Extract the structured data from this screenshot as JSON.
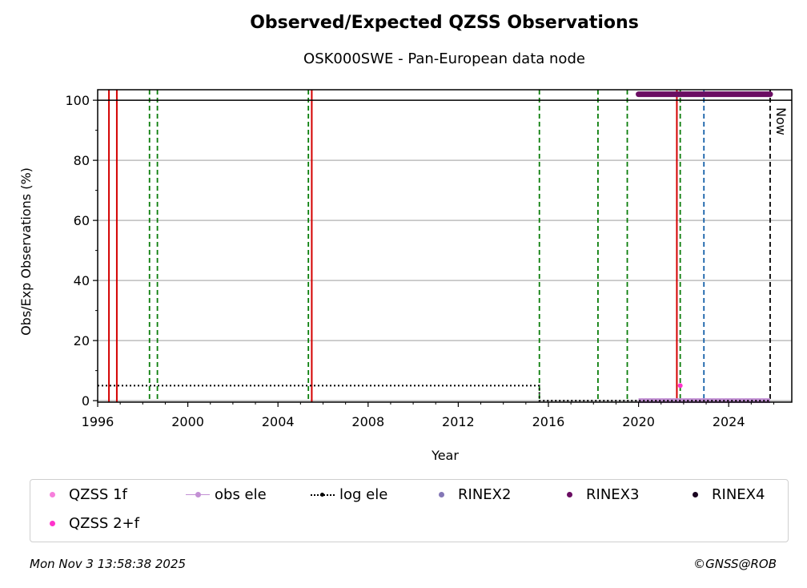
{
  "chart_data": {
    "type": "scatter",
    "title": "Observed/Expected QZSS Observations",
    "subtitle": "OSK000SWE - Pan-European data node",
    "xlabel": "Year",
    "ylabel": "Obs/Exp Observations (%)",
    "xlim": [
      1996.0,
      2026.8
    ],
    "ylim": [
      -0.5,
      103.5
    ],
    "xticks": [
      1996,
      2000,
      2004,
      2008,
      2012,
      2016,
      2020,
      2024
    ],
    "yticks": [
      0,
      20,
      40,
      60,
      80,
      100
    ],
    "grid": "horizontal",
    "now_label": "Now",
    "now_year": 2025.84,
    "red_lines": [
      1996.5,
      1996.85,
      2005.5,
      2021.7
    ],
    "green_dashed_lines": [
      1998.3,
      1998.65,
      2005.35,
      2015.6,
      2018.2,
      2019.5,
      2021.85
    ],
    "blue_dashed_lines": [
      2022.9
    ],
    "series": [
      {
        "name": "QZSS 1f",
        "color": "#f77fdc",
        "x": [],
        "y": []
      },
      {
        "name": "QZSS 2+f",
        "color": "#ff33cc",
        "x": [
          2021.85
        ],
        "y": [
          5
        ]
      },
      {
        "name": "obs ele",
        "color": "#c390d4",
        "x": [
          2020.0,
          2025.84
        ],
        "y": [
          0,
          0
        ]
      },
      {
        "name": "log ele",
        "color": "#000000",
        "x": [
          1996.0,
          2015.6,
          2015.6,
          2025.84
        ],
        "y": [
          5,
          5,
          0,
          0
        ]
      },
      {
        "name": "RINEX2",
        "color": "#8477b6",
        "x": [],
        "y": []
      },
      {
        "name": "RINEX3",
        "color": "#6a0d62",
        "x": [
          2020.0,
          2025.84
        ],
        "y": [
          102,
          102
        ]
      },
      {
        "name": "RINEX4",
        "color": "#1a0521",
        "x": [],
        "y": []
      }
    ]
  },
  "footer": {
    "date": "Mon Nov  3 13:58:38 2025",
    "copyright": "©GNSS@ROB"
  }
}
